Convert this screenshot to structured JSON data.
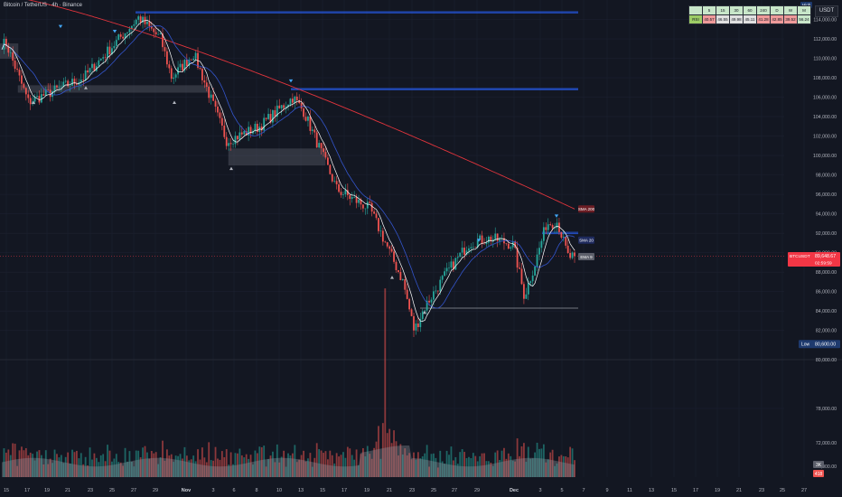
{
  "header": {
    "symbol_title": "Bitcoin / TetherUS · 4h · Binance",
    "currency": "USDT",
    "high_tag": "High"
  },
  "tf_table": {
    "headers": [
      "5",
      "15",
      "30",
      "60",
      "240",
      "D",
      "W",
      "M"
    ],
    "row_label": "RSI",
    "values": [
      "40.57",
      "46.55",
      "49.98",
      "45.11",
      "41.28",
      "42.85",
      "39.52",
      "56.24"
    ]
  },
  "colors": {
    "up": "#26a69a",
    "down": "#ef5350",
    "sma200": "#e0343c",
    "sma20": "#3355cc",
    "ema9": "#ffffff",
    "resistance": "#2962ff",
    "current_price": "#f23645"
  },
  "chart_data": {
    "type": "candlestick",
    "price_axis": {
      "ylim": [
        79000,
        116000
      ],
      "ticks": [
        78000,
        80000,
        82000,
        84000,
        86000,
        88000,
        90000,
        92000,
        94000,
        96000,
        98000,
        100000,
        102000,
        104000,
        106000,
        108000,
        110000,
        112000,
        114000
      ],
      "tick_labels": [
        "78,000.00",
        "80,000.00",
        "82,000.00",
        "84,000.00",
        "86,000.00",
        "88,000.00",
        "90,000.00",
        "92,000.00",
        "94,000.00",
        "96,000.00",
        "98,000.00",
        "100,000.00",
        "102,000.00",
        "104,000.00",
        "106,000.00",
        "108,000.00",
        "110,000.00",
        "112,000.00",
        "114,000.00"
      ]
    },
    "x_axis": {
      "labels": [
        "15",
        "17",
        "19",
        "21",
        "23",
        "25",
        "27",
        "29",
        "Nov",
        "3",
        "6",
        "8",
        "10",
        "13",
        "15",
        "17",
        "19",
        "21",
        "23",
        "25",
        "27",
        "29",
        "Dec",
        "3",
        "5",
        "7",
        "9",
        "11",
        "13",
        "15",
        "17",
        "19",
        "21",
        "23",
        "25",
        "27"
      ]
    },
    "key_points": [
      {
        "label": "Oct 15",
        "price": 111500
      },
      {
        "label": "Oct 17",
        "price": 105500
      },
      {
        "label": "Oct 22",
        "price": 108000
      },
      {
        "label": "Oct 27",
        "price": 114200
      },
      {
        "label": "Oct 29",
        "price": 112000
      },
      {
        "label": "Oct 30",
        "price": 108000
      },
      {
        "label": "Nov 1",
        "price": 110500
      },
      {
        "label": "Nov 4",
        "price": 101500
      },
      {
        "label": "Nov 7",
        "price": 103000
      },
      {
        "label": "Nov 10",
        "price": 106000
      },
      {
        "label": "Nov 11",
        "price": 104500
      },
      {
        "label": "Nov 14",
        "price": 96500
      },
      {
        "label": "Nov 17",
        "price": 94500
      },
      {
        "label": "Nov 20",
        "price": 87000
      },
      {
        "label": "Nov 21",
        "price": 82000
      },
      {
        "label": "Nov 22",
        "price": 84500
      },
      {
        "label": "Nov 24",
        "price": 88000
      },
      {
        "label": "Nov 26",
        "price": 91000
      },
      {
        "label": "Nov 28",
        "price": 91500
      },
      {
        "label": "Nov 30",
        "price": 90800
      },
      {
        "label": "Dec 1",
        "price": 85500
      },
      {
        "label": "Dec 2",
        "price": 89000
      },
      {
        "label": "Dec 3",
        "price": 93000
      },
      {
        "label": "Dec 4",
        "price": 93200
      },
      {
        "label": "Dec 5",
        "price": 89500
      },
      {
        "label": "Dec 6",
        "price": 89650
      }
    ],
    "resistance_levels": [
      {
        "price": 114700
      },
      {
        "price": 106800
      },
      {
        "price": 92000
      }
    ],
    "support_levels": [
      {
        "price": 84300
      }
    ],
    "indicators": [
      {
        "name": "SMA 200",
        "value": 94500
      },
      {
        "name": "SMA 20",
        "value": 91300
      },
      {
        "name": "EMA 9",
        "value": 89600
      }
    ],
    "current_price": {
      "symbol": "BTCUSDT",
      "value": "89,648.67",
      "countdown": "02:59:59",
      "price": 89650
    },
    "low_marker": {
      "label": "Low",
      "value": "80,600.00",
      "price": 80600
    },
    "volume": {
      "label": "3K",
      "value": "418",
      "max": 3000
    }
  }
}
